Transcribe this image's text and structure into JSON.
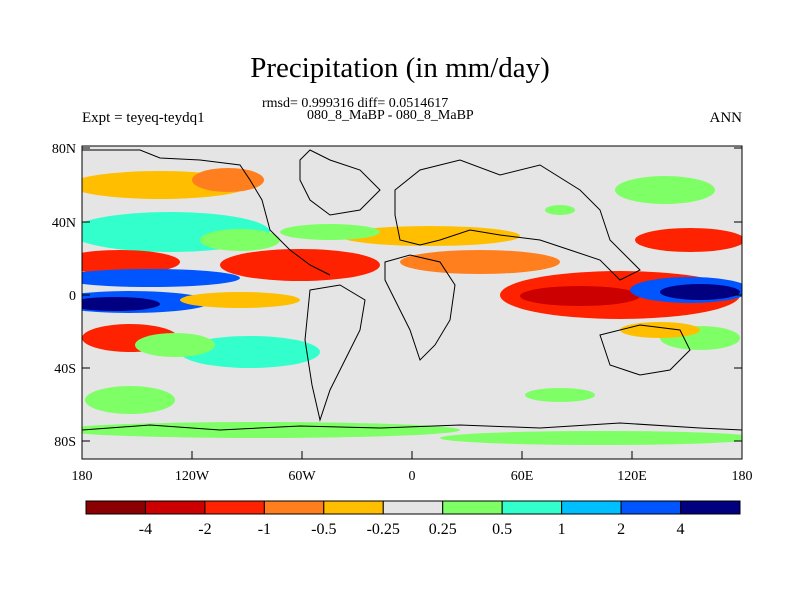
{
  "plot": {
    "title": "Precipitation (in mm/day)",
    "stats": "rmsd= 0.999316 diff= 0.0514617",
    "cases": "080_8_MaBP - 080_8_MaBP",
    "experiment": "Expt = teyeq-teydq1",
    "season": "ANN"
  },
  "axes": {
    "lat_ticks": [
      "80N",
      "40N",
      "0",
      "40S",
      "80S"
    ],
    "lon_ticks": [
      "180",
      "120W",
      "60W",
      "0",
      "60E",
      "120E",
      "180"
    ]
  },
  "colorbar": {
    "colors": [
      "#8b0000",
      "#cc0000",
      "#ff2200",
      "#ff7f1e",
      "#ffbf00",
      "#e5e5e5",
      "#7fff66",
      "#33ffcc",
      "#00bfff",
      "#0055ff",
      "#000080"
    ],
    "labels": [
      "-4",
      "-2",
      "-1",
      "-0.5",
      "-0.25",
      "0.25",
      "0.5",
      "1",
      "2",
      "4"
    ]
  }
}
